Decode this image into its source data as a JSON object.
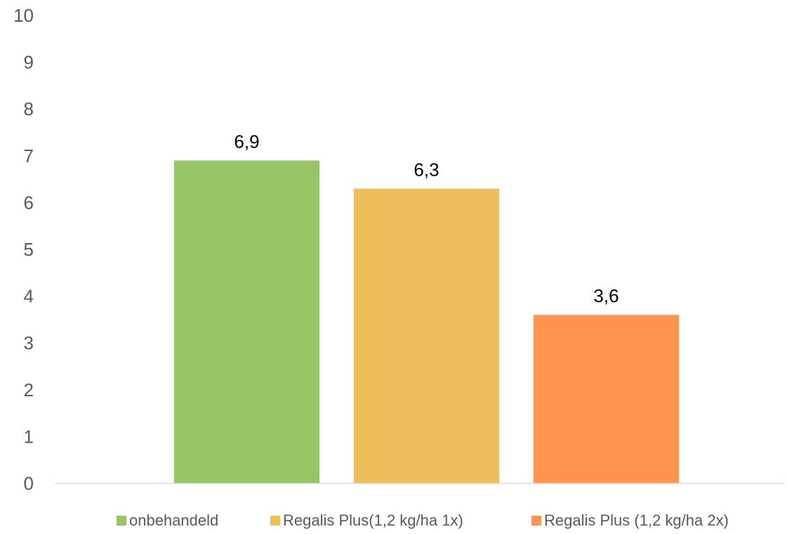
{
  "chart_data": {
    "type": "bar",
    "categories": [
      ""
    ],
    "series": [
      {
        "name": "onbehandeld",
        "values": [
          6.9
        ],
        "label": "6,9",
        "color": "#97C563"
      },
      {
        "name": "Regalis Plus(1,2 kg/ha 1x)",
        "values": [
          6.3
        ],
        "label": "6,3",
        "color": "#EEBE5B"
      },
      {
        "name": "Regalis Plus (1,2 kg/ha 2x)",
        "values": [
          3.6
        ],
        "label": "3,6",
        "color": "#FE944D"
      }
    ],
    "title": "",
    "xlabel": "",
    "ylabel": "",
    "ylim": [
      0,
      10
    ],
    "yticks": [
      "0",
      "1",
      "2",
      "3",
      "4",
      "5",
      "6",
      "7",
      "8",
      "9",
      "10"
    ],
    "grid": false,
    "legend_position": "bottom"
  }
}
